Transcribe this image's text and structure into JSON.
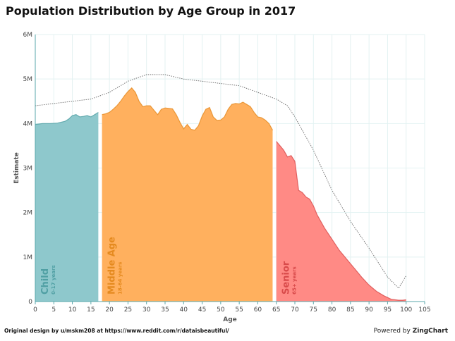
{
  "title": "Population Distribution by Age Group in 2017",
  "footer": {
    "credit": "Original design by u/mskm208 at https://www.reddit.com/r/dataisbeautiful/",
    "powered_prefix": "Powered by ",
    "powered_brand": "ZingChart"
  },
  "chart_data": {
    "type": "area",
    "title": "Population Distribution by Age Group in 2017",
    "xlabel": "Age",
    "ylabel": "Estimate",
    "xlim": [
      0,
      105
    ],
    "ylim": [
      0,
      6000000
    ],
    "x_ticks": [
      0,
      5,
      10,
      15,
      20,
      25,
      30,
      35,
      40,
      45,
      50,
      55,
      60,
      65,
      70,
      75,
      80,
      85,
      90,
      95,
      100,
      105
    ],
    "y_ticks": [
      0,
      1000000,
      2000000,
      3000000,
      4000000,
      5000000,
      6000000
    ],
    "y_tick_labels": [
      "0",
      "1M",
      "2M",
      "3M",
      "4M",
      "5M",
      "6M"
    ],
    "grid": true,
    "groups": [
      {
        "name": "Child",
        "range": "0-17 years",
        "color": "#8ec8cc",
        "text_color": "#4f9fa3",
        "x_start": 0,
        "x_end": 17
      },
      {
        "name": "Middle Age",
        "range": "18-64 years",
        "color": "#ffb05e",
        "text_color": "#e58a1f",
        "x_start": 18,
        "x_end": 64
      },
      {
        "name": "Senior",
        "range": "65+ years",
        "color": "#ff8a85",
        "text_color": "#d84a4a",
        "x_start": 65,
        "x_end": 100
      }
    ],
    "series": [
      {
        "style": "dotted-reference",
        "color": "#777777",
        "x": [
          0,
          5,
          10,
          15,
          20,
          25,
          30,
          35,
          40,
          45,
          50,
          55,
          60,
          65,
          68,
          70,
          75,
          80,
          85,
          90,
          95,
          98,
          100
        ],
        "values": [
          4400000,
          4450000,
          4500000,
          4550000,
          4700000,
          4950000,
          5100000,
          5100000,
          5000000,
          4950000,
          4900000,
          4850000,
          4700000,
          4550000,
          4400000,
          4150000,
          3400000,
          2500000,
          1800000,
          1200000,
          550000,
          300000,
          580000
        ]
      },
      {
        "style": "estimate",
        "x": [
          0,
          2,
          4,
          6,
          8,
          9,
          10,
          11,
          12,
          13,
          14,
          15,
          16,
          17,
          18,
          19,
          20,
          21,
          22,
          23,
          24,
          25,
          26,
          27,
          28,
          29,
          30,
          31,
          32,
          33,
          34,
          35,
          36,
          37,
          38,
          39,
          40,
          41,
          42,
          43,
          44,
          45,
          46,
          47,
          48,
          49,
          50,
          51,
          52,
          53,
          54,
          55,
          56,
          57,
          58,
          59,
          60,
          61,
          62,
          63,
          64,
          65,
          66,
          67,
          68,
          69,
          70,
          71,
          72,
          73,
          74,
          75,
          76,
          78,
          80,
          82,
          84,
          86,
          88,
          90,
          92,
          94,
          96,
          98,
          99,
          100
        ],
        "values": [
          3980000,
          4000000,
          4000000,
          4010000,
          4050000,
          4100000,
          4180000,
          4200000,
          4150000,
          4160000,
          4180000,
          4150000,
          4200000,
          4250000,
          4200000,
          4220000,
          4250000,
          4320000,
          4400000,
          4500000,
          4620000,
          4720000,
          4800000,
          4700000,
          4500000,
          4380000,
          4400000,
          4400000,
          4300000,
          4200000,
          4320000,
          4350000,
          4340000,
          4330000,
          4200000,
          4030000,
          3880000,
          3980000,
          3870000,
          3850000,
          3950000,
          4170000,
          4320000,
          4360000,
          4150000,
          4070000,
          4080000,
          4150000,
          4320000,
          4430000,
          4450000,
          4440000,
          4480000,
          4430000,
          4380000,
          4250000,
          4150000,
          4130000,
          4080000,
          4000000,
          3850000,
          3600000,
          3500000,
          3400000,
          3250000,
          3280000,
          3150000,
          2500000,
          2450000,
          2350000,
          2300000,
          2150000,
          1950000,
          1650000,
          1400000,
          1150000,
          950000,
          750000,
          550000,
          370000,
          230000,
          130000,
          50000,
          30000,
          30000,
          40000
        ]
      }
    ]
  }
}
